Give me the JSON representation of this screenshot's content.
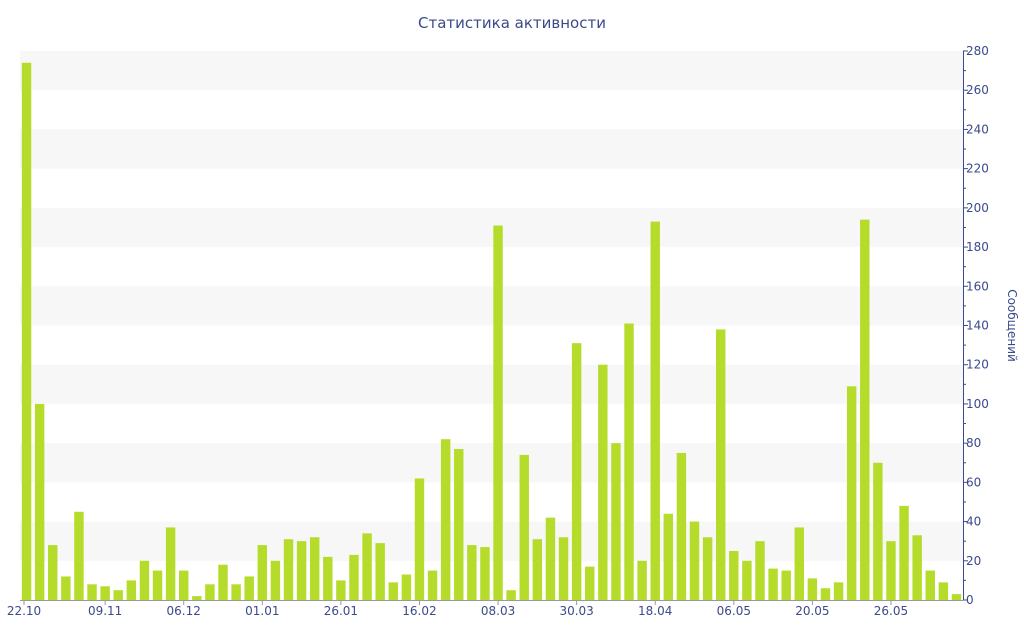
{
  "chart_data": {
    "type": "bar",
    "title": "Статистика активности",
    "ylabel": "Сообщений",
    "ylim": [
      0,
      280
    ],
    "y_ticks": [
      0,
      20,
      40,
      60,
      80,
      100,
      120,
      140,
      160,
      180,
      200,
      220,
      240,
      260,
      280
    ],
    "x_tick_labels": [
      {
        "label": "22.10",
        "index": 0
      },
      {
        "label": "09.11",
        "index": 6
      },
      {
        "label": "06.12",
        "index": 12
      },
      {
        "label": "01.01",
        "index": 18
      },
      {
        "label": "26.01",
        "index": 24
      },
      {
        "label": "16.02",
        "index": 30
      },
      {
        "label": "08.03",
        "index": 36
      },
      {
        "label": "30.03",
        "index": 42
      },
      {
        "label": "18.04",
        "index": 48
      },
      {
        "label": "06.05",
        "index": 54
      },
      {
        "label": "20.05",
        "index": 60
      },
      {
        "label": "26.05",
        "index": 66
      }
    ],
    "values": [
      274,
      100,
      28,
      12,
      45,
      8,
      7,
      5,
      10,
      20,
      15,
      37,
      15,
      2,
      8,
      18,
      8,
      12,
      28,
      20,
      31,
      30,
      32,
      22,
      10,
      23,
      34,
      29,
      9,
      13,
      62,
      15,
      82,
      77,
      28,
      27,
      191,
      5,
      74,
      31,
      42,
      32,
      131,
      17,
      120,
      80,
      141,
      20,
      193,
      44,
      75,
      40,
      32,
      138,
      25,
      20,
      30,
      16,
      15,
      37,
      11,
      6,
      9,
      109,
      194,
      70,
      30,
      48,
      33,
      15,
      9,
      3
    ],
    "bar_color": "#b5dc2b",
    "band_color": "#f7f7f7",
    "axis_color": "#3a4a8a",
    "grid": true,
    "axis_position": "right"
  }
}
